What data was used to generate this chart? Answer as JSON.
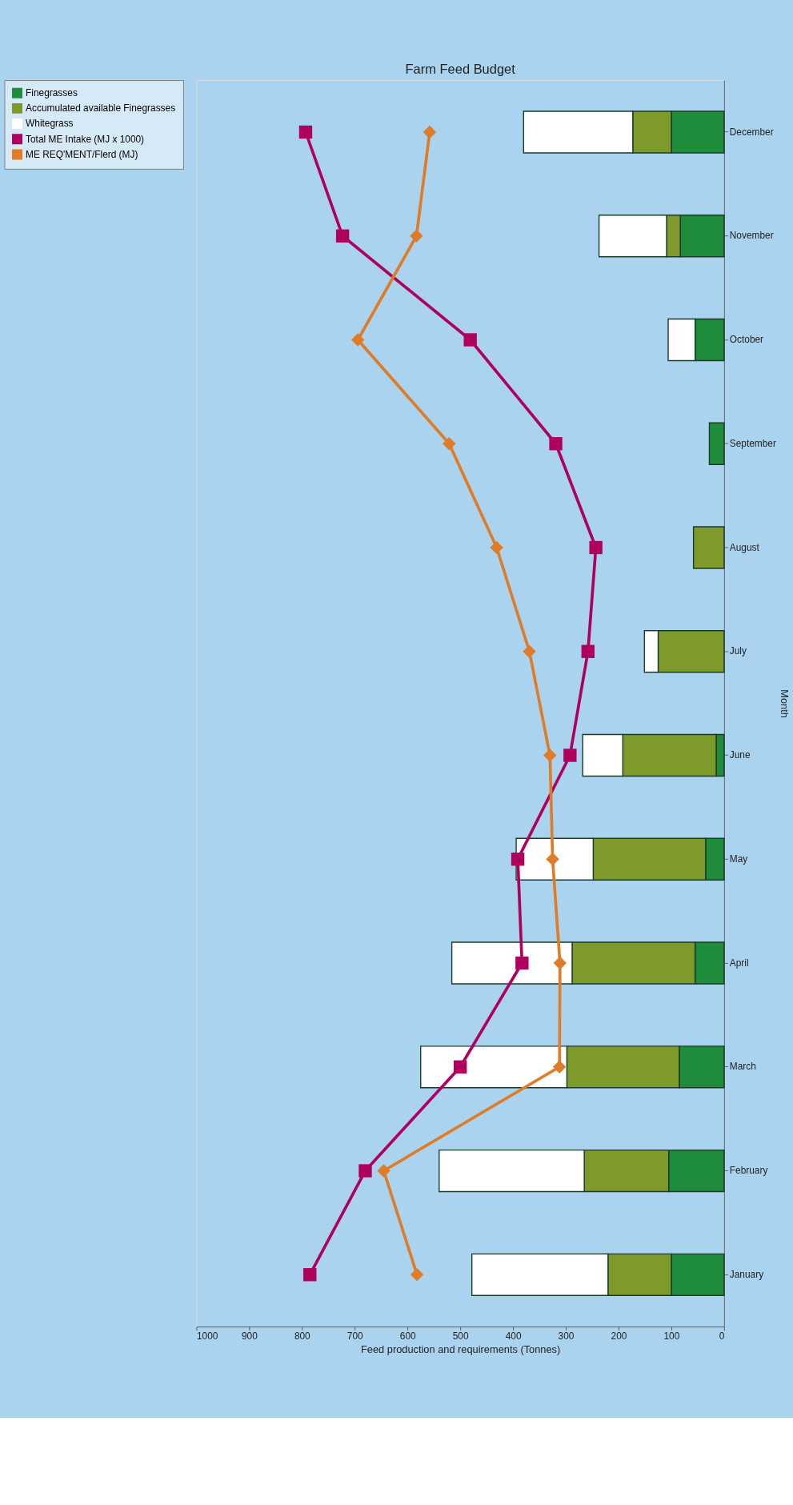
{
  "chart_data": {
    "type": "bar",
    "title": "Farm Feed Budget",
    "orientation": "horizontal",
    "stacked": true,
    "categories": [
      "December",
      "November",
      "October",
      "September",
      "August",
      "July",
      "June",
      "May",
      "April",
      "March",
      "February",
      "January"
    ],
    "series": [
      {
        "name": "Finegrasses",
        "color": "#1e8c3a",
        "values": [
          100,
          83,
          55,
          28,
          0,
          0,
          15,
          35,
          55,
          85,
          105,
          100
        ]
      },
      {
        "name": "Accumulated available Finegrasses",
        "color": "#7d9a2a",
        "values": [
          73,
          26,
          0,
          0,
          58,
          125,
          177,
          213,
          233,
          213,
          160,
          120
        ]
      },
      {
        "name": "Whitegrass",
        "color": "#ffffff",
        "values": [
          207,
          128,
          51,
          0,
          0,
          26,
          76,
          146,
          228,
          277,
          275,
          258
        ]
      },
      {
        "name": "Total ME Intake (MJ x 1000)",
        "type": "line",
        "marker": "square",
        "color": "#b0005e",
        "values": [
          793,
          723,
          481,
          319,
          243,
          258,
          292,
          391,
          383,
          500,
          680,
          785
        ]
      },
      {
        "name": "ME REQ'MENT/Flerd (MJ)",
        "type": "line",
        "marker": "diamond",
        "color": "#e07b28",
        "values": [
          558,
          583,
          694,
          521,
          431,
          369,
          330,
          325,
          311,
          312,
          645,
          582
        ]
      }
    ],
    "xlabel": "Feed production and requirements (Tonnes)",
    "ylabel": "Month",
    "xlim": [
      1000,
      0
    ],
    "xticks": [
      0,
      100,
      200,
      300,
      400,
      500,
      600,
      700,
      800,
      900,
      1000
    ],
    "legend": "left",
    "grid": false
  }
}
